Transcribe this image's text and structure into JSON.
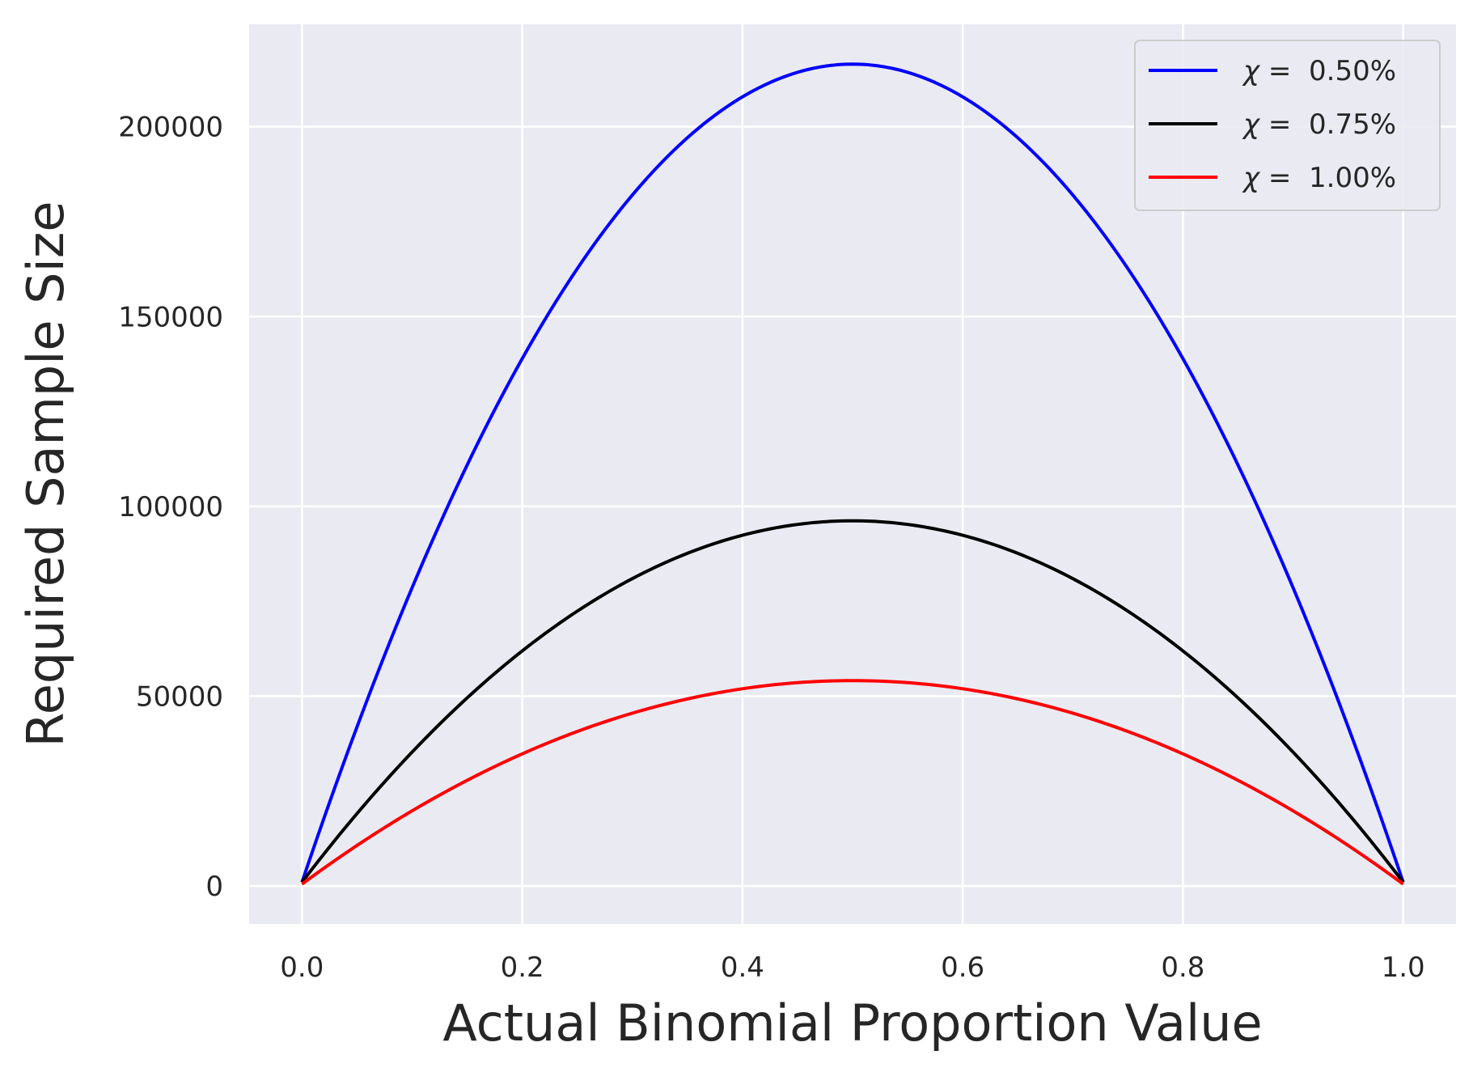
{
  "chart_data": {
    "type": "line",
    "title": "",
    "xlabel": "Actual Binomial Proportion Value",
    "ylabel": "Required Sample Size",
    "xlim": [
      -0.048,
      1.048
    ],
    "ylim": [
      -10000,
      227000
    ],
    "xticks": [
      "0.0",
      "0.2",
      "0.4",
      "0.6",
      "0.8",
      "1.0"
    ],
    "yticks": [
      "0",
      "50000",
      "100000",
      "150000",
      "200000"
    ],
    "grid": true,
    "background": "#eaeaf2",
    "legend_position": "top-right",
    "series": [
      {
        "name": "χ =  0.50%",
        "symbol": "χ",
        "label_suffix": " =  0.50%",
        "color": "#0000ff",
        "peak": 216500,
        "offset": 1000
      },
      {
        "name": "χ =  0.75%",
        "symbol": "χ",
        "label_suffix": " =  0.75%",
        "color": "#000000",
        "peak": 96200,
        "offset": 1000
      },
      {
        "name": "χ =  1.00%",
        "symbol": "χ",
        "label_suffix": " =  1.00%",
        "color": "#ff0000",
        "peak": 54100,
        "offset": 500
      }
    ]
  }
}
